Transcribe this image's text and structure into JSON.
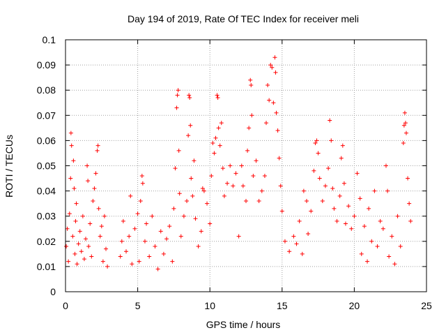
{
  "chart_data": {
    "type": "scatter",
    "title": "Day 194 of 2019, Rate Of TEC Index for receiver meli",
    "xlabel": "GPS time / hours",
    "ylabel": "ROTI / TECUs",
    "xlim": [
      0,
      25
    ],
    "ylim": [
      0,
      0.1
    ],
    "xticks": [
      0,
      5,
      10,
      15,
      20,
      25
    ],
    "yticks": [
      0,
      0.01,
      0.02,
      0.03,
      0.04,
      0.05,
      0.06,
      0.07,
      0.08,
      0.09,
      0.1
    ],
    "grid": true,
    "marker": "plus",
    "color": "#ff0000",
    "series": [
      {
        "name": "ROTI",
        "points": [
          [
            0.05,
            0.018
          ],
          [
            0.12,
            0.025
          ],
          [
            0.2,
            0.012
          ],
          [
            0.28,
            0.031
          ],
          [
            0.35,
            0.045
          ],
          [
            0.38,
            0.063
          ],
          [
            0.42,
            0.058
          ],
          [
            0.5,
            0.022
          ],
          [
            0.55,
            0.052
          ],
          [
            0.6,
            0.041
          ],
          [
            0.65,
            0.015
          ],
          [
            0.7,
            0.028
          ],
          [
            0.75,
            0.035
          ],
          [
            0.8,
            0.011
          ],
          [
            0.9,
            0.019
          ],
          [
            1.0,
            0.024
          ],
          [
            1.1,
            0.016
          ],
          [
            1.2,
            0.03
          ],
          [
            1.3,
            0.013
          ],
          [
            1.4,
            0.021
          ],
          [
            1.5,
            0.05
          ],
          [
            1.55,
            0.044
          ],
          [
            1.6,
            0.018
          ],
          [
            1.7,
            0.027
          ],
          [
            1.8,
            0.014
          ],
          [
            1.9,
            0.036
          ],
          [
            2.0,
            0.041
          ],
          [
            2.1,
            0.047
          ],
          [
            2.2,
            0.056
          ],
          [
            2.25,
            0.058
          ],
          [
            2.3,
            0.033
          ],
          [
            2.4,
            0.022
          ],
          [
            2.5,
            0.026
          ],
          [
            2.6,
            0.012
          ],
          [
            2.7,
            0.03
          ],
          [
            2.8,
            0.017
          ],
          [
            2.9,
            0.01
          ],
          [
            3.8,
            0.014
          ],
          [
            3.9,
            0.02
          ],
          [
            4.0,
            0.028
          ],
          [
            4.2,
            0.016
          ],
          [
            4.4,
            0.022
          ],
          [
            4.5,
            0.038
          ],
          [
            4.6,
            0.011
          ],
          [
            4.8,
            0.025
          ],
          [
            5.0,
            0.031
          ],
          [
            5.1,
            0.012
          ],
          [
            5.2,
            0.036
          ],
          [
            5.3,
            0.046
          ],
          [
            5.35,
            0.043
          ],
          [
            5.5,
            0.02
          ],
          [
            5.6,
            0.027
          ],
          [
            5.8,
            0.014
          ],
          [
            6.0,
            0.03
          ],
          [
            6.2,
            0.018
          ],
          [
            6.4,
            0.009
          ],
          [
            6.6,
            0.024
          ],
          [
            6.8,
            0.015
          ],
          [
            7.0,
            0.021
          ],
          [
            7.2,
            0.026
          ],
          [
            7.4,
            0.012
          ],
          [
            7.5,
            0.033
          ],
          [
            7.6,
            0.049
          ],
          [
            7.7,
            0.073
          ],
          [
            7.75,
            0.078
          ],
          [
            7.8,
            0.08
          ],
          [
            7.85,
            0.056
          ],
          [
            7.9,
            0.039
          ],
          [
            8.0,
            0.022
          ],
          [
            8.2,
            0.03
          ],
          [
            8.4,
            0.036
          ],
          [
            8.5,
            0.062
          ],
          [
            8.55,
            0.078
          ],
          [
            8.6,
            0.077
          ],
          [
            8.65,
            0.066
          ],
          [
            8.7,
            0.045
          ],
          [
            8.8,
            0.038
          ],
          [
            8.9,
            0.052
          ],
          [
            9.0,
            0.029
          ],
          [
            9.2,
            0.018
          ],
          [
            9.4,
            0.024
          ],
          [
            9.5,
            0.041
          ],
          [
            9.6,
            0.04
          ],
          [
            9.8,
            0.035
          ],
          [
            10.0,
            0.027
          ],
          [
            10.1,
            0.046
          ],
          [
            10.2,
            0.059
          ],
          [
            10.3,
            0.055
          ],
          [
            10.4,
            0.061
          ],
          [
            10.5,
            0.078
          ],
          [
            10.55,
            0.077
          ],
          [
            10.6,
            0.065
          ],
          [
            10.7,
            0.058
          ],
          [
            10.8,
            0.067
          ],
          [
            10.9,
            0.049
          ],
          [
            11.0,
            0.038
          ],
          [
            11.2,
            0.043
          ],
          [
            11.4,
            0.05
          ],
          [
            11.6,
            0.042
          ],
          [
            11.8,
            0.047
          ],
          [
            12.0,
            0.022
          ],
          [
            12.2,
            0.05
          ],
          [
            12.3,
            0.042
          ],
          [
            12.5,
            0.036
          ],
          [
            12.6,
            0.056
          ],
          [
            12.7,
            0.065
          ],
          [
            12.8,
            0.084
          ],
          [
            12.85,
            0.082
          ],
          [
            12.9,
            0.07
          ],
          [
            13.0,
            0.046
          ],
          [
            13.2,
            0.052
          ],
          [
            13.4,
            0.036
          ],
          [
            13.6,
            0.04
          ],
          [
            13.8,
            0.046
          ],
          [
            13.9,
            0.067
          ],
          [
            14.0,
            0.082
          ],
          [
            14.1,
            0.076
          ],
          [
            14.2,
            0.09
          ],
          [
            14.3,
            0.089
          ],
          [
            14.4,
            0.075
          ],
          [
            14.5,
            0.093
          ],
          [
            14.55,
            0.087
          ],
          [
            14.6,
            0.071
          ],
          [
            14.7,
            0.064
          ],
          [
            14.8,
            0.053
          ],
          [
            14.9,
            0.042
          ],
          [
            15.0,
            0.032
          ],
          [
            15.2,
            0.02
          ],
          [
            15.5,
            0.016
          ],
          [
            15.8,
            0.022
          ],
          [
            16.0,
            0.019
          ],
          [
            16.2,
            0.028
          ],
          [
            16.4,
            0.015
          ],
          [
            16.5,
            0.04
          ],
          [
            16.7,
            0.036
          ],
          [
            16.8,
            0.023
          ],
          [
            17.0,
            0.032
          ],
          [
            17.2,
            0.048
          ],
          [
            17.3,
            0.059
          ],
          [
            17.4,
            0.06
          ],
          [
            17.5,
            0.055
          ],
          [
            17.6,
            0.045
          ],
          [
            17.8,
            0.036
          ],
          [
            18.0,
            0.042
          ],
          [
            18.2,
            0.049
          ],
          [
            18.3,
            0.068
          ],
          [
            18.4,
            0.06
          ],
          [
            18.5,
            0.041
          ],
          [
            18.6,
            0.033
          ],
          [
            18.8,
            0.028
          ],
          [
            19.0,
            0.038
          ],
          [
            19.1,
            0.053
          ],
          [
            19.2,
            0.058
          ],
          [
            19.3,
            0.043
          ],
          [
            19.4,
            0.027
          ],
          [
            19.6,
            0.034
          ],
          [
            19.8,
            0.025
          ],
          [
            20.0,
            0.03
          ],
          [
            20.2,
            0.047
          ],
          [
            20.4,
            0.037
          ],
          [
            20.5,
            0.015
          ],
          [
            20.7,
            0.026
          ],
          [
            20.9,
            0.012
          ],
          [
            21.0,
            0.033
          ],
          [
            21.2,
            0.02
          ],
          [
            21.4,
            0.04
          ],
          [
            21.6,
            0.018
          ],
          [
            21.8,
            0.028
          ],
          [
            22.0,
            0.025
          ],
          [
            22.2,
            0.05
          ],
          [
            22.3,
            0.04
          ],
          [
            22.4,
            0.014
          ],
          [
            22.6,
            0.022
          ],
          [
            22.8,
            0.011
          ],
          [
            23.0,
            0.03
          ],
          [
            23.2,
            0.018
          ],
          [
            23.4,
            0.059
          ],
          [
            23.45,
            0.066
          ],
          [
            23.5,
            0.071
          ],
          [
            23.55,
            0.067
          ],
          [
            23.6,
            0.063
          ],
          [
            23.7,
            0.045
          ],
          [
            23.8,
            0.035
          ],
          [
            23.9,
            0.028
          ]
        ]
      }
    ]
  }
}
